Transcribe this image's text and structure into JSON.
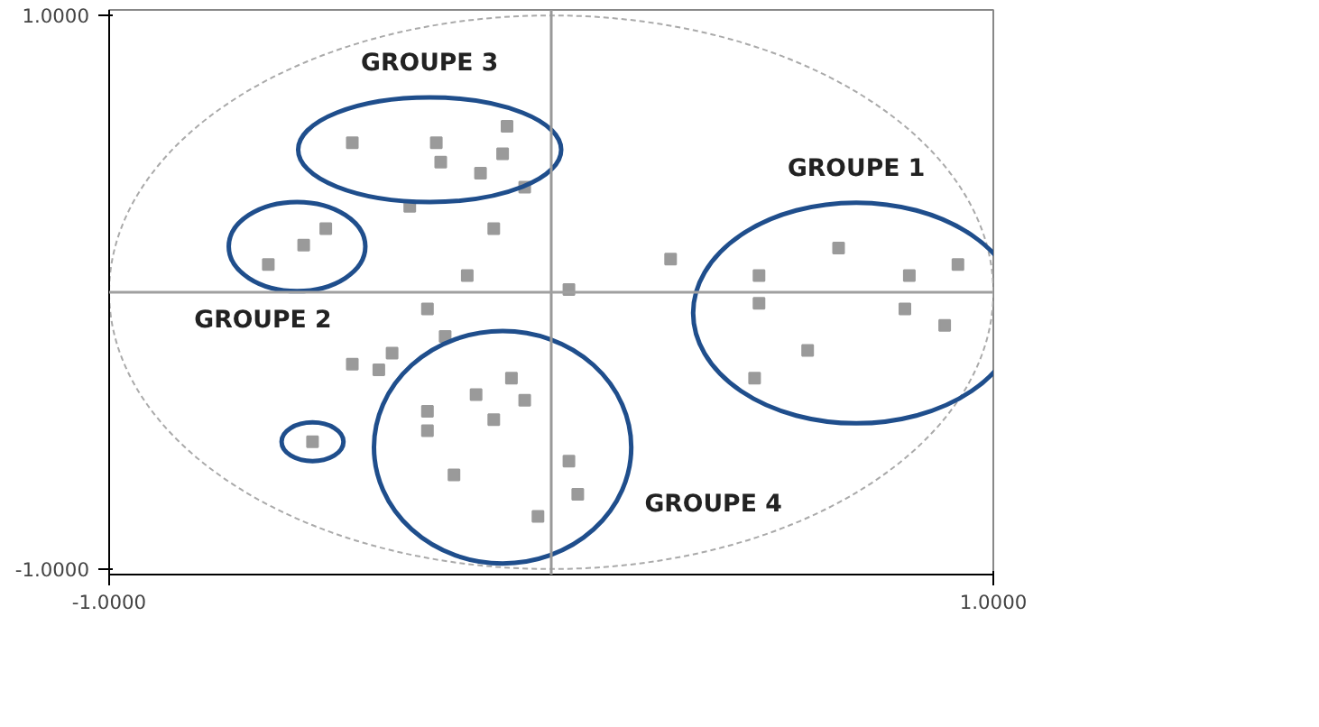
{
  "chart_data": {
    "type": "scatter",
    "xlim": [
      -1,
      1
    ],
    "ylim": [
      -1.02,
      1.02
    ],
    "xticks": [
      {
        "value": -1,
        "label": "-1.0000"
      },
      {
        "value": 1,
        "label": "1.0000"
      }
    ],
    "yticks": [
      {
        "value": -1,
        "label": "-1.0000"
      },
      {
        "value": 1,
        "label": "1.0000"
      }
    ],
    "grid": false,
    "marker": "square",
    "ref_lines": [
      {
        "axis": "x",
        "value": 0,
        "color": "#999999"
      },
      {
        "axis": "y",
        "value": 0,
        "color": "#a0a0a0"
      }
    ],
    "series": [
      {
        "color": "#9a9a9a",
        "x": [
          -0.06,
          -0.32,
          -0.13,
          -0.19,
          0.04,
          0.27,
          -0.28,
          -0.24,
          -0.36,
          -0.39,
          -0.45
        ],
        "values": [
          0.38,
          0.31,
          0.23,
          0.06,
          0.01,
          0.12,
          -0.06,
          -0.16,
          -0.22,
          -0.28,
          -0.26
        ]
      },
      {
        "color": "#9a9a9a",
        "x": [
          0.65,
          0.47,
          0.81,
          0.92,
          0.47,
          0.8,
          0.89,
          0.58,
          0.46
        ],
        "values": [
          0.16,
          0.06,
          0.06,
          0.1,
          -0.04,
          -0.06,
          -0.12,
          -0.21,
          -0.31
        ]
      },
      {
        "color": "#9a9a9a",
        "x": [
          -0.51,
          -0.56,
          -0.64
        ],
        "values": [
          0.23,
          0.17,
          0.1
        ]
      },
      {
        "color": "#9a9a9a",
        "x": [
          -0.1,
          -0.45,
          -0.26,
          -0.25,
          -0.11,
          -0.16
        ],
        "values": [
          0.6,
          0.54,
          0.54,
          0.47,
          0.5,
          0.43
        ]
      },
      {
        "color": "#9a9a9a",
        "x": [
          -0.09,
          -0.17,
          -0.06,
          -0.13,
          -0.28,
          -0.28,
          -0.22,
          0.04,
          0.06,
          -0.03
        ],
        "values": [
          -0.31,
          -0.37,
          -0.39,
          -0.46,
          -0.43,
          -0.5,
          -0.66,
          -0.61,
          -0.73,
          -0.81
        ]
      },
      {
        "color": "#9a9a9a",
        "x": [
          -0.54
        ],
        "values": [
          -0.54
        ]
      }
    ],
    "annotations": [
      "GROUPE 1",
      "GROUPE 2",
      "GROUPE 3",
      "GROUPE 4"
    ]
  }
}
